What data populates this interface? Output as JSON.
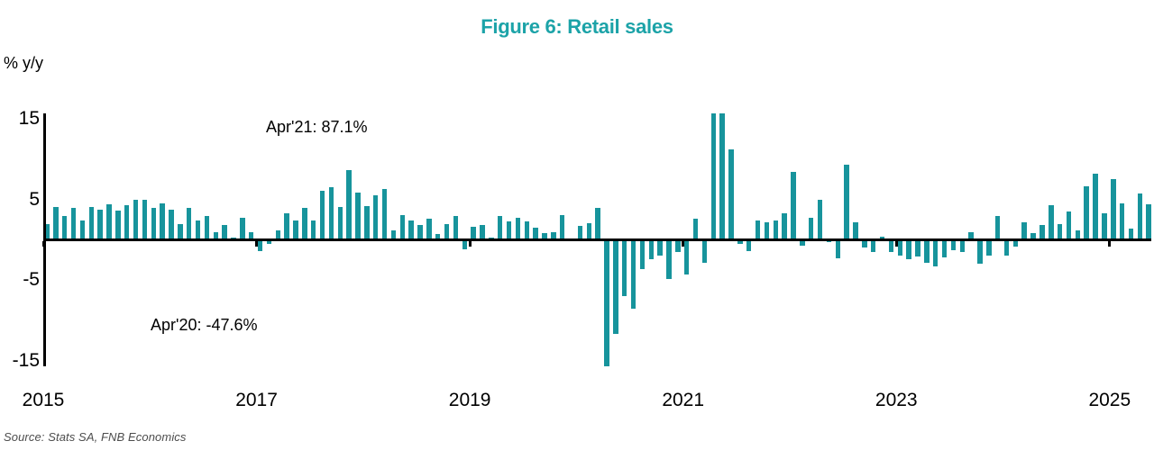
{
  "page": {
    "background": "#ffffff"
  },
  "chart_data": {
    "type": "bar",
    "title": "Figure 6: Retail sales",
    "unit_label": "% y/y",
    "source": "Source: Stats SA, FNB Economics",
    "bar_color": "#17949C",
    "title_color": "#1CA3A8",
    "axis_color": "#000000",
    "frequency": "monthly",
    "start": "2015-01",
    "end": "2025-05",
    "x_tick_years": [
      2015,
      2017,
      2019,
      2021,
      2023,
      2025
    ],
    "y_ticks": [
      15,
      5,
      -5,
      -15
    ],
    "ylim_display": [
      -15.6,
      15.7
    ],
    "gridlines": false,
    "legend": "none",
    "values": [
      2.0,
      4.1,
      2.9,
      4.0,
      2.4,
      4.1,
      3.7,
      4.4,
      3.6,
      4.3,
      5.0,
      5.0,
      4.0,
      4.5,
      3.7,
      1.9,
      4.0,
      2.4,
      2.9,
      0.9,
      1.8,
      0.3,
      2.7,
      0.9,
      -1.4,
      -0.5,
      1.2,
      3.3,
      2.4,
      3.9,
      2.4,
      6.1,
      6.5,
      4.1,
      8.6,
      5.9,
      4.2,
      5.5,
      6.3,
      1.2,
      3.1,
      2.4,
      1.8,
      2.6,
      0.7,
      2.0,
      2.9,
      -1.2,
      1.6,
      1.8,
      0.3,
      2.9,
      2.3,
      2.7,
      2.3,
      1.5,
      0.8,
      0.9,
      3.1,
      0.1,
      1.7,
      2.1,
      3.9,
      -47.6,
      -11.6,
      -7.0,
      -8.5,
      -3.6,
      -2.4,
      -2.0,
      -4.8,
      -1.5,
      -4.3,
      2.6,
      -2.8,
      87.1,
      15.8,
      11.2,
      -0.5,
      -1.4,
      2.4,
      2.2,
      2.4,
      3.3,
      8.4,
      -0.7,
      2.7,
      4.9,
      -0.3,
      -2.3,
      9.3,
      2.2,
      -1.0,
      -1.5,
      0.4,
      -1.5,
      -2.0,
      -2.4,
      -2.1,
      -2.8,
      -3.3,
      -2.2,
      -1.3,
      -1.5,
      1.0,
      -3.0,
      -2.0,
      3.0,
      -2.0,
      -0.8,
      2.2,
      0.8,
      1.8,
      4.3,
      1.9,
      3.5,
      1.2,
      6.6,
      8.2,
      3.3,
      7.5,
      4.5,
      1.4,
      5.7,
      4.4
    ],
    "annotations": {
      "peak": {
        "text": "Apr'21: 87.1%",
        "month": "2021-04",
        "value": 87.1
      },
      "trough": {
        "text": "Apr'20: -47.6%",
        "month": "2020-04",
        "value": -47.6
      }
    }
  }
}
